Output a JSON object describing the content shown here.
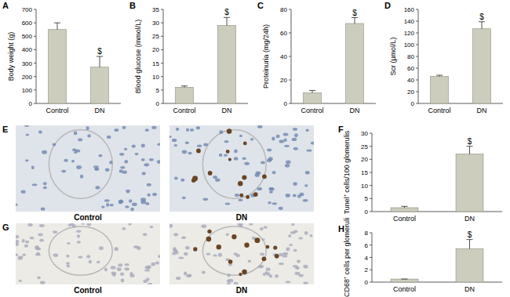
{
  "chart_data": [
    {
      "type": "bar",
      "panel": "A",
      "ylabel": "Body weight (g)",
      "categories": [
        "Control",
        "DN"
      ],
      "values": [
        550,
        270
      ],
      "errors": [
        50,
        80
      ],
      "annotations": [
        null,
        "$"
      ],
      "color": "#cdcdbd",
      "ylim": [
        0,
        700
      ],
      "yticks": [
        0,
        100,
        200,
        300,
        400,
        500,
        600,
        700
      ]
    },
    {
      "type": "bar",
      "panel": "B",
      "ylabel": "Blood glucose (mmol/L)",
      "categories": [
        "Control",
        "DN"
      ],
      "values": [
        6,
        29
      ],
      "errors": [
        0.5,
        3
      ],
      "annotations": [
        null,
        "$"
      ],
      "color": "#cdcdbd",
      "ylim": [
        0,
        35
      ],
      "yticks": [
        0,
        5,
        10,
        15,
        20,
        25,
        30,
        35
      ]
    },
    {
      "type": "bar",
      "panel": "C",
      "ylabel": "Proteinuria (mg/24h)",
      "categories": [
        "Control",
        "DN"
      ],
      "values": [
        9,
        68
      ],
      "errors": [
        2,
        5
      ],
      "annotations": [
        null,
        "$"
      ],
      "color": "#cdcdbd",
      "ylim": [
        0,
        80
      ],
      "yticks": [
        0,
        20,
        40,
        60,
        80
      ]
    },
    {
      "type": "bar",
      "panel": "D",
      "ylabel": "Scr (μmol/L)",
      "categories": [
        "Control",
        "DN"
      ],
      "values": [
        46,
        127
      ],
      "errors": [
        2,
        12
      ],
      "annotations": [
        null,
        "$"
      ],
      "color": "#cdcdbd",
      "ylim": [
        0,
        160
      ],
      "yticks": [
        0,
        20,
        40,
        60,
        80,
        100,
        120,
        140,
        160
      ]
    },
    {
      "type": "bar",
      "panel": "F",
      "ylabel": "Tunel⁺ cells/100 glomerulis",
      "categories": [
        "Control",
        "DN"
      ],
      "values": [
        1.5,
        22
      ],
      "errors": [
        0.5,
        3
      ],
      "annotations": [
        null,
        "$"
      ],
      "color": "#cdcdbd",
      "ylim": [
        0,
        30
      ],
      "yticks": [
        0,
        5,
        10,
        15,
        20,
        25,
        30
      ]
    },
    {
      "type": "bar",
      "panel": "H",
      "ylabel": "CD68⁺ cells per glomeruli",
      "categories": [
        "Control",
        "DN"
      ],
      "values": [
        0.5,
        5.4
      ],
      "errors": [
        0,
        1.5
      ],
      "annotations": [
        null,
        "$"
      ],
      "color": "#cdcdbd",
      "ylim": [
        0,
        8
      ],
      "yticks": [
        0,
        2,
        4,
        6,
        8
      ]
    }
  ],
  "images": [
    {
      "panel": "E",
      "labels": [
        "Control",
        "DN"
      ]
    },
    {
      "panel": "G",
      "labels": [
        "Control",
        "DN"
      ]
    }
  ]
}
